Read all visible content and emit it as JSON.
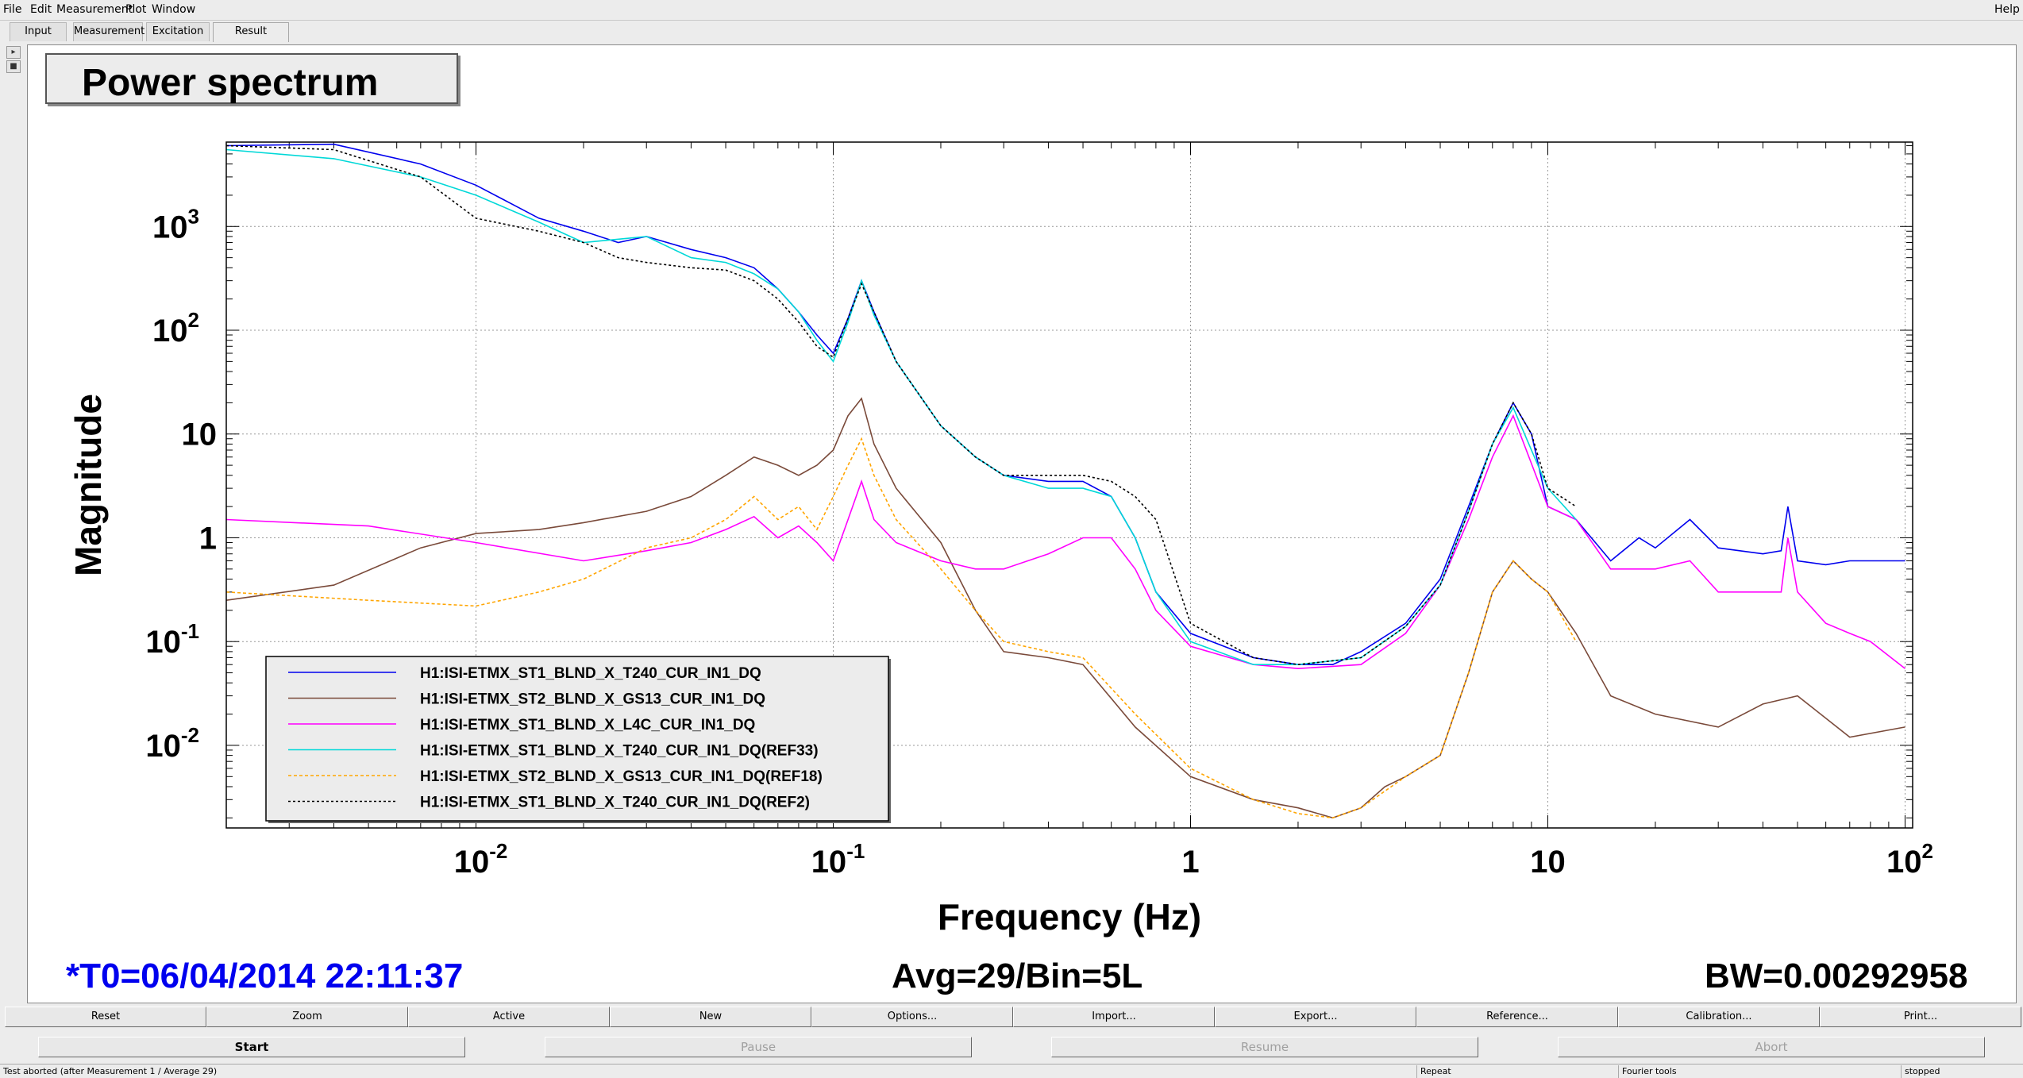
{
  "menu": {
    "file": "File",
    "edit": "Edit",
    "measurement": "Measurement",
    "plot": "Plot",
    "window": "Window",
    "help": "Help"
  },
  "tabs": [
    {
      "label": "Input",
      "active": false
    },
    {
      "label": "Measurement",
      "active": false
    },
    {
      "label": "Excitation",
      "active": false
    },
    {
      "label": "Result",
      "active": true
    }
  ],
  "plot": {
    "title": "Power spectrum",
    "t0": "*T0=06/04/2014 22:11:37",
    "avg": "Avg=29/Bin=5L",
    "bw": "BW=0.00292958",
    "colors": {
      "t0": "#0000ee",
      "text": "#000000"
    }
  },
  "chart_data": {
    "type": "line",
    "xlabel": "Frequency (Hz)",
    "ylabel": "Magnitude",
    "x_scale": "log",
    "y_scale": "log",
    "xlim": [
      0.002,
      105
    ],
    "ylim": [
      0.0016,
      6500
    ],
    "grid": true,
    "legend_position": "bottom-left",
    "x_ticks": [
      {
        "value": 0.01,
        "base": "10",
        "exp": "-2"
      },
      {
        "value": 0.1,
        "base": "10",
        "exp": "-1"
      },
      {
        "value": 1,
        "base": "1",
        "exp": ""
      },
      {
        "value": 10,
        "base": "10",
        "exp": ""
      },
      {
        "value": 100,
        "base": "10",
        "exp": "2"
      }
    ],
    "y_ticks": [
      {
        "value": 1000,
        "base": "10",
        "exp": "3"
      },
      {
        "value": 100,
        "base": "10",
        "exp": "2"
      },
      {
        "value": 10,
        "base": "10",
        "exp": ""
      },
      {
        "value": 1,
        "base": "1",
        "exp": ""
      },
      {
        "value": 0.1,
        "base": "10",
        "exp": "-1"
      },
      {
        "value": 0.01,
        "base": "10",
        "exp": "-2"
      }
    ],
    "series": [
      {
        "name": "H1:ISI-ETMX_ST1_BLND_X_T240_CUR_IN1_DQ",
        "color": "#0000ee",
        "dash": "solid",
        "x": [
          0.002,
          0.004,
          0.007,
          0.01,
          0.015,
          0.02,
          0.025,
          0.03,
          0.04,
          0.05,
          0.06,
          0.07,
          0.08,
          0.09,
          0.1,
          0.11,
          0.12,
          0.13,
          0.15,
          0.2,
          0.25,
          0.3,
          0.4,
          0.5,
          0.6,
          0.7,
          0.8,
          1.0,
          1.5,
          2.0,
          2.5,
          3.0,
          4.0,
          5.0,
          6.0,
          7.0,
          8.0,
          9.0,
          10,
          12,
          15,
          18,
          20,
          25,
          30,
          40,
          45,
          47,
          50,
          60,
          70,
          80,
          100
        ],
        "y": [
          6000,
          6200,
          4000,
          2500,
          1200,
          900,
          700,
          800,
          600,
          500,
          400,
          250,
          150,
          90,
          60,
          130,
          300,
          150,
          50,
          12,
          6,
          4,
          3.5,
          3.5,
          2.5,
          1.0,
          0.3,
          0.12,
          0.07,
          0.06,
          0.06,
          0.08,
          0.15,
          0.4,
          2.0,
          8,
          20,
          10,
          2,
          1.5,
          0.6,
          1.0,
          0.8,
          1.5,
          0.8,
          0.7,
          0.75,
          2,
          0.6,
          0.55,
          0.6,
          0.6,
          0.6
        ]
      },
      {
        "name": "H1:ISI-ETMX_ST2_BLND_X_GS13_CUR_IN1_DQ",
        "color": "#7a4a3a",
        "dash": "solid",
        "x": [
          0.002,
          0.004,
          0.007,
          0.01,
          0.015,
          0.02,
          0.03,
          0.04,
          0.05,
          0.06,
          0.07,
          0.08,
          0.09,
          0.1,
          0.11,
          0.12,
          0.13,
          0.15,
          0.2,
          0.25,
          0.3,
          0.4,
          0.5,
          0.7,
          1.0,
          1.5,
          2.0,
          2.5,
          3.0,
          3.5,
          4.0,
          5.0,
          6.0,
          7.0,
          8.0,
          9.0,
          10,
          12,
          15,
          20,
          30,
          40,
          50,
          70,
          100
        ],
        "y": [
          0.25,
          0.35,
          0.8,
          1.1,
          1.2,
          1.4,
          1.8,
          2.5,
          4,
          6,
          5,
          4,
          5,
          7,
          15,
          22,
          8,
          3,
          0.9,
          0.2,
          0.08,
          0.07,
          0.06,
          0.015,
          0.005,
          0.003,
          0.0025,
          0.002,
          0.0025,
          0.004,
          0.005,
          0.008,
          0.05,
          0.3,
          0.6,
          0.4,
          0.3,
          0.12,
          0.03,
          0.02,
          0.015,
          0.025,
          0.03,
          0.012,
          0.015
        ]
      },
      {
        "name": "H1:ISI-ETMX_ST1_BLND_X_L4C_CUR_IN1_DQ",
        "color": "#ff00ff",
        "dash": "solid",
        "x": [
          0.002,
          0.005,
          0.01,
          0.02,
          0.03,
          0.04,
          0.05,
          0.06,
          0.07,
          0.08,
          0.09,
          0.1,
          0.11,
          0.12,
          0.13,
          0.15,
          0.2,
          0.25,
          0.3,
          0.4,
          0.5,
          0.6,
          0.7,
          0.8,
          1.0,
          1.5,
          2.0,
          3.0,
          4.0,
          5.0,
          6.0,
          7.0,
          8.0,
          10,
          12,
          15,
          20,
          25,
          30,
          40,
          45,
          47,
          50,
          60,
          70,
          80,
          100
        ],
        "y": [
          1.5,
          1.3,
          0.9,
          0.6,
          0.75,
          0.9,
          1.2,
          1.6,
          1.0,
          1.3,
          0.9,
          0.6,
          1.5,
          3.5,
          1.5,
          0.9,
          0.6,
          0.5,
          0.5,
          0.7,
          1.0,
          1.0,
          0.5,
          0.2,
          0.09,
          0.06,
          0.055,
          0.06,
          0.12,
          0.35,
          1.5,
          6,
          15,
          2,
          1.5,
          0.5,
          0.5,
          0.6,
          0.3,
          0.3,
          0.3,
          1.0,
          0.3,
          0.15,
          0.12,
          0.1,
          0.055
        ]
      },
      {
        "name": "H1:ISI-ETMX_ST1_BLND_X_T240_CUR_IN1_DQ(REF33)",
        "color": "#00d8d8",
        "dash": "solid",
        "x": [
          0.002,
          0.004,
          0.007,
          0.01,
          0.015,
          0.02,
          0.03,
          0.04,
          0.05,
          0.06,
          0.07,
          0.08,
          0.09,
          0.1,
          0.11,
          0.12,
          0.13,
          0.15,
          0.2,
          0.25,
          0.3,
          0.4,
          0.5,
          0.6,
          0.7,
          0.8,
          1.0,
          1.5,
          2.0,
          3.0,
          4.0,
          5.0,
          6.0,
          7.0,
          8.0,
          10,
          12
        ],
        "y": [
          5500,
          4500,
          3000,
          2000,
          1100,
          700,
          800,
          500,
          450,
          350,
          250,
          150,
          80,
          50,
          120,
          300,
          140,
          50,
          12,
          6,
          4,
          3,
          3,
          2.5,
          1.0,
          0.3,
          0.1,
          0.06,
          0.06,
          0.07,
          0.14,
          0.35,
          1.8,
          8,
          18,
          3,
          1.5
        ]
      },
      {
        "name": "H1:ISI-ETMX_ST2_BLND_X_GS13_CUR_IN1_DQ(REF18)",
        "color": "#ffa500",
        "dash": "4,3",
        "x": [
          0.002,
          0.005,
          0.01,
          0.015,
          0.02,
          0.03,
          0.04,
          0.05,
          0.06,
          0.07,
          0.08,
          0.09,
          0.1,
          0.11,
          0.12,
          0.13,
          0.15,
          0.2,
          0.25,
          0.3,
          0.4,
          0.5,
          0.7,
          1.0,
          1.5,
          2.0,
          2.5,
          3.0,
          4.0,
          5.0,
          6.0,
          7.0,
          8.0,
          9.0,
          10,
          12
        ],
        "y": [
          0.3,
          0.25,
          0.22,
          0.3,
          0.4,
          0.8,
          1.0,
          1.5,
          2.5,
          1.5,
          2.0,
          1.2,
          2.5,
          5,
          9,
          4,
          1.5,
          0.5,
          0.2,
          0.1,
          0.08,
          0.07,
          0.02,
          0.006,
          0.003,
          0.0022,
          0.002,
          0.0025,
          0.005,
          0.008,
          0.05,
          0.3,
          0.6,
          0.4,
          0.3,
          0.1
        ]
      },
      {
        "name": "H1:ISI-ETMX_ST1_BLND_X_T240_CUR_IN1_DQ(REF2)",
        "color": "#000000",
        "dash": "3,3",
        "x": [
          0.002,
          0.004,
          0.007,
          0.01,
          0.015,
          0.02,
          0.025,
          0.03,
          0.04,
          0.05,
          0.06,
          0.07,
          0.08,
          0.09,
          0.1,
          0.11,
          0.12,
          0.13,
          0.15,
          0.2,
          0.25,
          0.3,
          0.4,
          0.5,
          0.6,
          0.7,
          0.8,
          1.0,
          1.5,
          2.0,
          3.0,
          4.0,
          5.0,
          6.0,
          7.0,
          8.0,
          9.0,
          10,
          12
        ],
        "y": [
          6000,
          5500,
          3000,
          1200,
          900,
          700,
          500,
          450,
          400,
          380,
          300,
          200,
          120,
          70,
          55,
          130,
          280,
          150,
          50,
          12,
          6,
          4,
          4,
          4,
          3.5,
          2.5,
          1.5,
          0.15,
          0.07,
          0.06,
          0.07,
          0.14,
          0.35,
          1.8,
          8,
          20,
          10,
          3,
          2
        ]
      }
    ]
  },
  "buttons_row1": [
    "Reset",
    "Zoom",
    "Active",
    "New",
    "Options...",
    "Import...",
    "Export...",
    "Reference...",
    "Calibration...",
    "Print..."
  ],
  "buttons_row2": [
    {
      "label": "Start",
      "enabled": true
    },
    {
      "label": "Pause",
      "enabled": false
    },
    {
      "label": "Resume",
      "enabled": false
    },
    {
      "label": "Abort",
      "enabled": false
    }
  ],
  "status": {
    "message": "Test aborted (after Measurement 1 / Average 29)",
    "repeat": "Repeat",
    "tools": "Fourier tools",
    "state": "stopped"
  }
}
